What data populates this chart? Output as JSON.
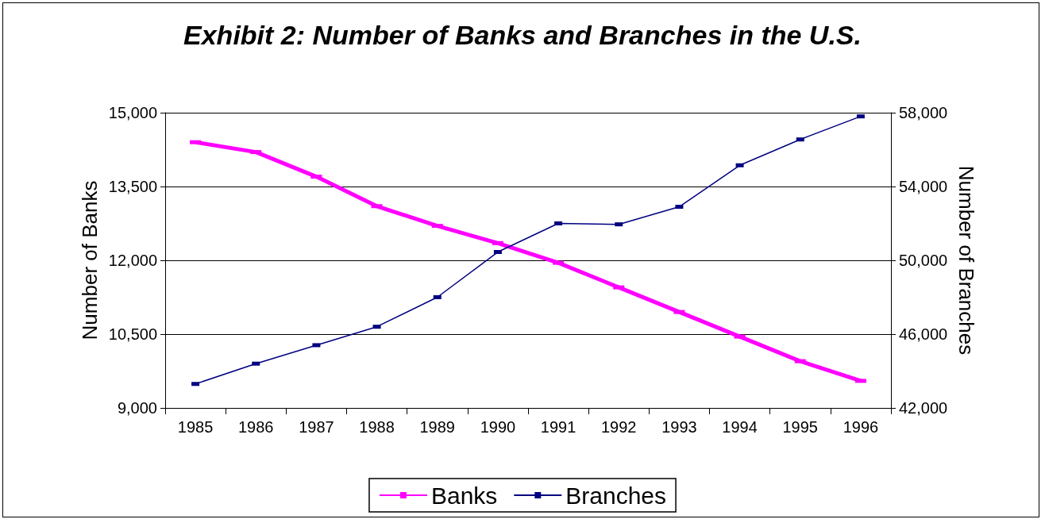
{
  "chart_data": {
    "type": "line",
    "title": "Exhibit 2: Number of Banks and Branches in the U.S.",
    "ylabel": "Number of Banks",
    "y2label": "Number of Branches",
    "categories": [
      "1985",
      "1986",
      "1987",
      "1988",
      "1989",
      "1990",
      "1991",
      "1992",
      "1993",
      "1994",
      "1995",
      "1996"
    ],
    "series": [
      {
        "name": "Banks",
        "color": "#ff00ff",
        "values": [
          14400,
          14200,
          13700,
          13100,
          12700,
          12350,
          11950,
          11450,
          10950,
          10450,
          9950,
          9550
        ]
      },
      {
        "name": "Branches",
        "color": "#000080",
        "axis": "y2",
        "values": [
          43300,
          44400,
          45400,
          46400,
          48000,
          50450,
          52000,
          51950,
          52900,
          55150,
          56550,
          57800
        ]
      }
    ],
    "ylim": [
      9000,
      15000
    ],
    "yticks": [
      {
        "value": 9000,
        "label": "9,000"
      },
      {
        "value": 10500,
        "label": "10,500"
      },
      {
        "value": 12000,
        "label": "12,000"
      },
      {
        "value": 13500,
        "label": "13,500"
      },
      {
        "value": 15000,
        "label": "15,000"
      }
    ],
    "y2lim": [
      42000,
      58000
    ],
    "y2ticks": [
      {
        "value": 42000,
        "label": "42,000"
      },
      {
        "value": 46000,
        "label": "46,000"
      },
      {
        "value": 50000,
        "label": "50,000"
      },
      {
        "value": 54000,
        "label": "54,000"
      },
      {
        "value": 58000,
        "label": "58,000"
      }
    ],
    "grid": "y",
    "legend": "bottom",
    "marker": "square",
    "line_style": "solid"
  }
}
